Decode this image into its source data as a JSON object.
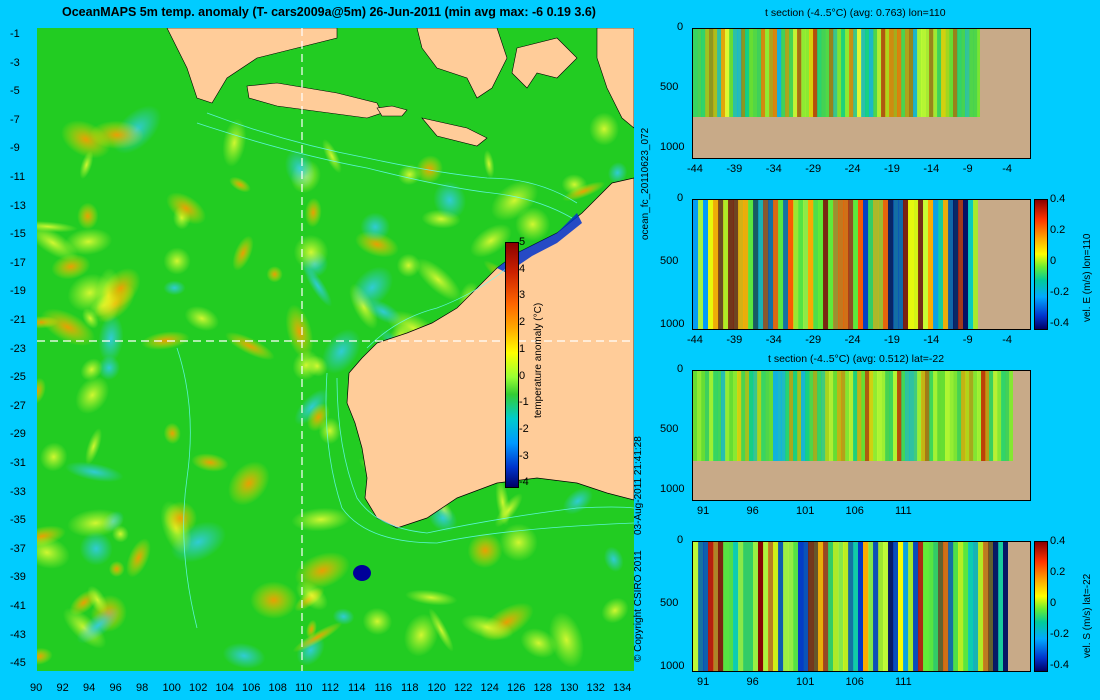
{
  "map": {
    "title": "OceanMAPS 5m temp. anomaly (T- cars2009a@5m) 26-Jun-2011 (min avg max: -6 0.19 3.6)",
    "lon_ticks": [
      "90",
      "92",
      "94",
      "96",
      "98",
      "100",
      "102",
      "104",
      "106",
      "108",
      "110",
      "112",
      "114",
      "116",
      "118",
      "120",
      "122",
      "124",
      "126",
      "128",
      "130",
      "132",
      "134"
    ],
    "lat_ticks": [
      "-1",
      "-3",
      "-5",
      "-7",
      "-9",
      "-11",
      "-13",
      "-15",
      "-17",
      "-19",
      "-21",
      "-23",
      "-25",
      "-27",
      "-29",
      "-31",
      "-33",
      "-35",
      "-37",
      "-39",
      "-41",
      "-43",
      "-45"
    ],
    "section_lon": "110",
    "section_lat": "-22",
    "colorbar": {
      "label": "temperature anomaly (°C)",
      "ticks": [
        "5",
        "4",
        "3",
        "2",
        "1",
        "0",
        "-1",
        "-2",
        "-3",
        "-4"
      ]
    },
    "colors": {
      "land": "#ffcc99",
      "section_line": "#ffffff"
    }
  },
  "side_text": {
    "copyright": "© Copyright CSIRO 2011",
    "timestamp": "03-Aug-2011 21:41:28",
    "run_id": "ocean_fc_20110623_072"
  },
  "panels": [
    {
      "title": "t section (-4..5°C) (avg: 0.763) lon=110",
      "x_ticks": [
        "-44",
        "-39",
        "-34",
        "-29",
        "-24",
        "-19",
        "-14",
        "-9",
        "-4"
      ],
      "y_ticks": [
        "0",
        "500",
        "1000"
      ],
      "colorbar": null
    },
    {
      "title": "",
      "x_ticks": [
        "-44",
        "-39",
        "-34",
        "-29",
        "-24",
        "-19",
        "-14",
        "-9",
        "-4"
      ],
      "y_ticks": [
        "0",
        "500",
        "1000"
      ],
      "colorbar": {
        "label": "vel. E (m/s) lon=110",
        "ticks": [
          "0.4",
          "0.2",
          "0",
          "-0.2",
          "-0.4"
        ]
      }
    },
    {
      "title": "t section (-4..5°C) (avg: 0.512) lat=-22",
      "x_ticks": [
        "91",
        "96",
        "101",
        "106",
        "111"
      ],
      "y_ticks": [
        "0",
        "500",
        "1000"
      ],
      "colorbar": null
    },
    {
      "title": "",
      "x_ticks": [
        "91",
        "96",
        "101",
        "106",
        "111"
      ],
      "y_ticks": [
        "0",
        "500",
        "1000"
      ],
      "colorbar": {
        "label": "vel. S (m/s) lat=-22",
        "ticks": [
          "0.4",
          "0.2",
          "0",
          "-0.2",
          "-0.4"
        ]
      }
    }
  ]
}
